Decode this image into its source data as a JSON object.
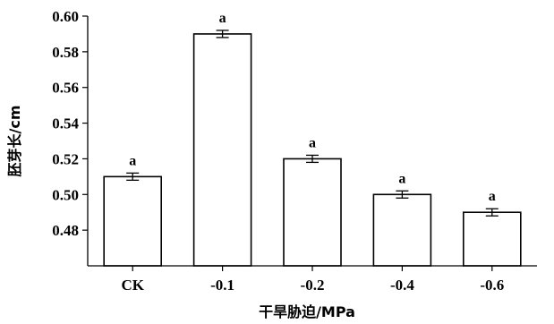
{
  "chart_data": {
    "type": "bar",
    "title": "",
    "xlabel": "干旱胁迫/MPa",
    "ylabel": "胚芽长/cm",
    "categories": [
      "CK",
      "-0.1",
      "-0.2",
      "-0.4",
      "-0.6"
    ],
    "values": [
      0.51,
      0.59,
      0.52,
      0.5,
      0.49
    ],
    "errors": [
      0.002,
      0.002,
      0.002,
      0.002,
      0.002
    ],
    "labels": [
      "a",
      "a",
      "a",
      "a",
      "a"
    ],
    "ylim": [
      0.46,
      0.6
    ],
    "yticks": [
      "0.48",
      "0.50",
      "0.52",
      "0.54",
      "0.56",
      "0.58",
      "0.60"
    ],
    "ytick_values": [
      0.48,
      0.5,
      0.52,
      0.54,
      0.56,
      0.58,
      0.6
    ],
    "grid": false,
    "bar_fill": "#ffffff",
    "bar_stroke": "#000000"
  }
}
